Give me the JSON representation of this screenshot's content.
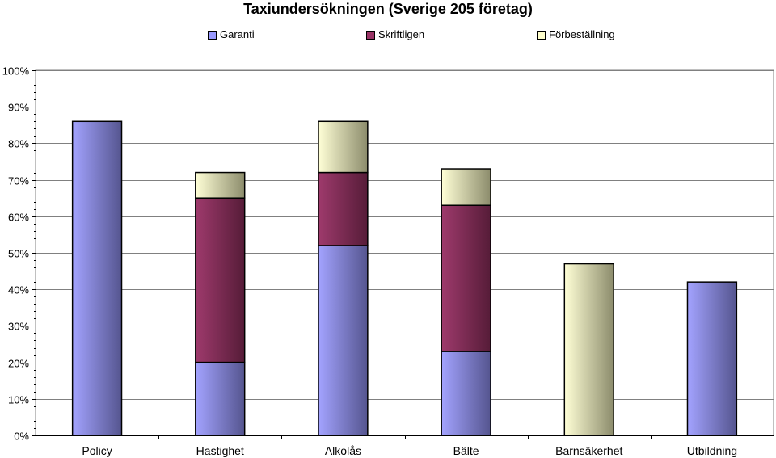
{
  "chart_data": {
    "type": "bar",
    "stacked": true,
    "title": "Taxiundersökningen (Sverige 205 företag)",
    "categories": [
      "Policy",
      "Hastighet",
      "Alkolås",
      "Bälte",
      "Barnsäkerhet",
      "Utbildning"
    ],
    "series": [
      {
        "name": "Garanti",
        "values": [
          86,
          20,
          52,
          23,
          0,
          42
        ],
        "color": "#9999ff"
      },
      {
        "name": "Skriftligen",
        "values": [
          0,
          45,
          20,
          40,
          0,
          0
        ],
        "color": "#993366"
      },
      {
        "name": "Förbeställning",
        "values": [
          0,
          7,
          14,
          10,
          47,
          0
        ],
        "color": "#ffffcc"
      }
    ],
    "ylim": [
      0,
      100
    ],
    "yticks": [
      "0%",
      "10%",
      "20%",
      "30%",
      "40%",
      "50%",
      "60%",
      "70%",
      "80%",
      "90%",
      "100%"
    ],
    "xlabel": "",
    "ylabel": "",
    "grid": true,
    "legend_position": "top"
  }
}
